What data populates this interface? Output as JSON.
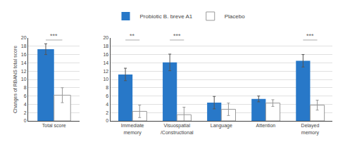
{
  "chart_data": [
    {
      "type": "bar",
      "categories": [
        "Total score"
      ],
      "ylabel": "Changes of RBANS total score",
      "series": [
        {
          "name": "Probiotic B. breve A1",
          "color": "#2878c8",
          "values": [
            17.3
          ],
          "errors": [
            1.3
          ]
        },
        {
          "name": "Placebo",
          "color": "#ffffff",
          "values": [
            6.2
          ],
          "errors": [
            1.8
          ]
        }
      ],
      "ylim": [
        0,
        20
      ],
      "yticks": [
        0,
        2,
        4,
        6,
        8,
        10,
        12,
        14,
        16,
        18,
        20
      ],
      "grid": true,
      "annotations": [
        {
          "category": "Total score",
          "text": "***",
          "y": 19.5
        }
      ]
    },
    {
      "type": "bar",
      "categories": [
        "Immediate\nmemory",
        "Visuospatial\n/Constructional",
        "Language",
        "Attention",
        "Delayed\nmemory"
      ],
      "series": [
        {
          "name": "Probiotic B. breve A1",
          "color": "#2878c8",
          "values": [
            11.2,
            14.1,
            4.4,
            5.3,
            14.5
          ],
          "errors": [
            1.5,
            2.0,
            1.5,
            0.7,
            1.5
          ]
        },
        {
          "name": "Placebo",
          "color": "#ffffff",
          "values": [
            2.3,
            1.5,
            2.8,
            4.3,
            3.8
          ],
          "errors": [
            1.5,
            1.8,
            1.5,
            0.8,
            1.2
          ]
        }
      ],
      "ylim": [
        0,
        20
      ],
      "yticks": [
        0,
        2,
        4,
        6,
        8,
        10,
        12,
        14,
        16,
        18,
        20
      ],
      "grid": true,
      "legend": "top",
      "annotations": [
        {
          "category": "Immediate\nmemory",
          "text": "**",
          "y": 19.5
        },
        {
          "category": "Visuospatial\n/Constructional",
          "text": "***",
          "y": 19.5
        },
        {
          "category": "Delayed\nmemory",
          "text": "***",
          "y": 19.5
        }
      ]
    }
  ]
}
